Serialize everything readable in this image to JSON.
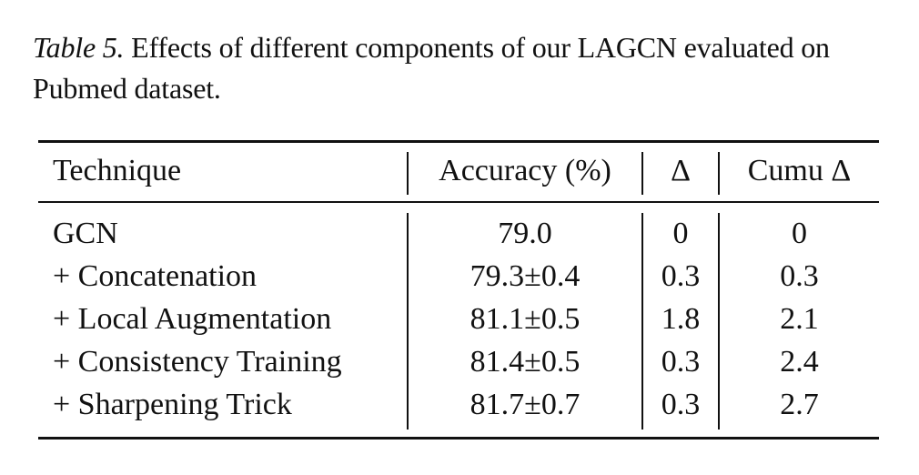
{
  "caption": {
    "label": "Table 5.",
    "text": " Effects of different components of our LAGCN evaluated on Pubmed dataset."
  },
  "table": {
    "headers": [
      "Technique",
      "Accuracy (%)",
      "Δ",
      "Cumu Δ"
    ],
    "rows": [
      {
        "technique": "GCN",
        "accuracy": "79.0",
        "delta": "0",
        "cumu": "0"
      },
      {
        "technique": "+ Concatenation",
        "accuracy": "79.3±0.4",
        "delta": "0.3",
        "cumu": "0.3"
      },
      {
        "technique": "+ Local Augmentation",
        "accuracy": "81.1±0.5",
        "delta": "1.8",
        "cumu": "2.1"
      },
      {
        "technique": "+ Consistency Training",
        "accuracy": "81.4±0.5",
        "delta": "0.3",
        "cumu": "2.4"
      },
      {
        "technique": "+ Sharpening Trick",
        "accuracy": "81.7±0.7",
        "delta": "0.3",
        "cumu": "2.7"
      }
    ]
  }
}
